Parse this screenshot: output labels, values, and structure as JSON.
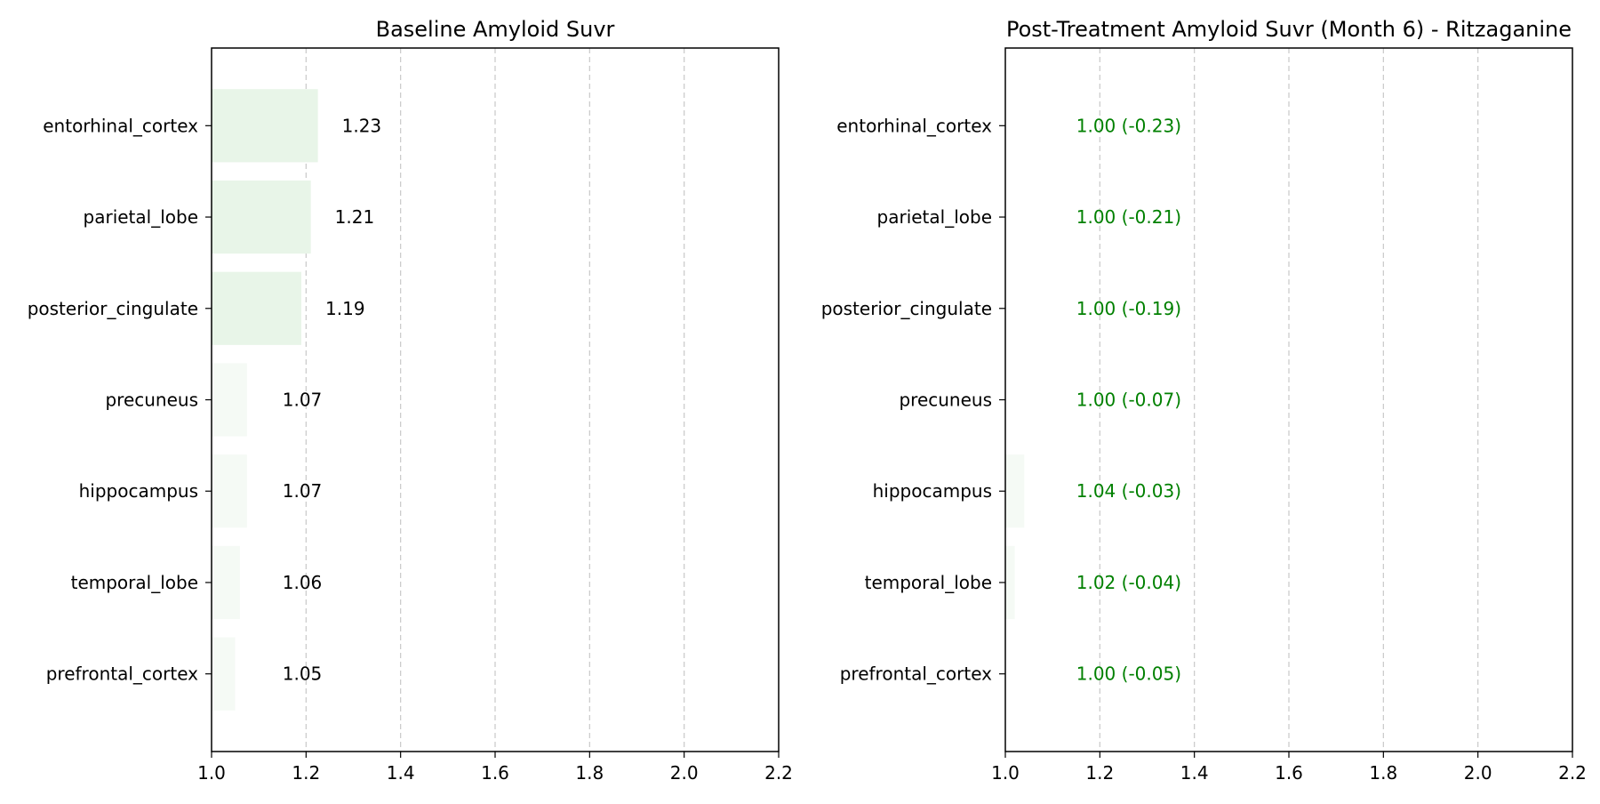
{
  "chart_data": [
    {
      "type": "bar",
      "orientation": "horizontal",
      "title": "Baseline Amyloid Suvr",
      "xlabel": "",
      "ylabel": "",
      "xlim": [
        1.0,
        2.2
      ],
      "xticks": [
        "1.0",
        "1.2",
        "1.4",
        "1.6",
        "1.8",
        "2.0",
        "2.2"
      ],
      "grid": "x-dashed",
      "categories": [
        "entorhinal_cortex",
        "parietal_lobe",
        "posterior_cingulate",
        "precuneus",
        "hippocampus",
        "temporal_lobe",
        "prefrontal_cortex"
      ],
      "values": [
        1.225,
        1.21,
        1.19,
        1.075,
        1.075,
        1.06,
        1.05
      ],
      "data_labels": [
        "1.23",
        "1.21",
        "1.19",
        "1.07",
        "1.07",
        "1.06",
        "1.05"
      ],
      "bar_color": "#e8f5e8",
      "label_color": "#000000"
    },
    {
      "type": "bar",
      "orientation": "horizontal",
      "title": "Post-Treatment Amyloid Suvr (Month 6) - Ritzaganine",
      "xlabel": "",
      "ylabel": "",
      "xlim": [
        1.0,
        2.2
      ],
      "xticks": [
        "1.0",
        "1.2",
        "1.4",
        "1.6",
        "1.8",
        "2.0",
        "2.2"
      ],
      "grid": "x-dashed",
      "categories": [
        "entorhinal_cortex",
        "parietal_lobe",
        "posterior_cingulate",
        "precuneus",
        "hippocampus",
        "temporal_lobe",
        "prefrontal_cortex"
      ],
      "values": [
        1.0,
        1.0,
        1.0,
        1.0,
        1.04,
        1.02,
        1.0
      ],
      "data_labels": [
        "1.00 (-0.23)",
        "1.00 (-0.21)",
        "1.00 (-0.19)",
        "1.00 (-0.07)",
        "1.04 (-0.03)",
        "1.02 (-0.04)",
        "1.00 (-0.05)"
      ],
      "bar_color": "#e8f5e8",
      "label_color": "#008000"
    }
  ]
}
